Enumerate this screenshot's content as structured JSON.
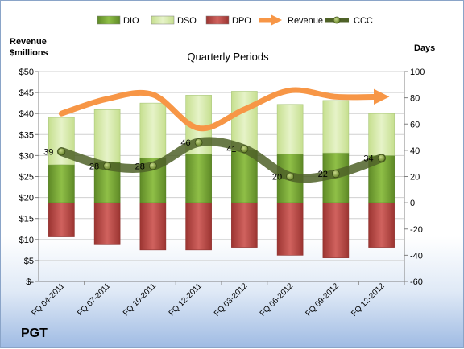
{
  "chart_data": {
    "type": "bar",
    "title": "Quarterly Periods",
    "company": "PGT",
    "ylabel_left": [
      "Revenue",
      "$millions"
    ],
    "ylabel_right": "Days",
    "categories": [
      "FQ 04-2011",
      "FQ 07-2011",
      "FQ 10-2011",
      "FQ 12-2011",
      "FQ 03-2012",
      "FQ 06-2012",
      "FQ 09-2012",
      "FQ 12-2012"
    ],
    "left_ticks": [
      "$-",
      "$5",
      "$10",
      "$15",
      "$20",
      "$25",
      "$30",
      "$35",
      "$40",
      "$45",
      "$50"
    ],
    "right_ticks": [
      "-60",
      "-40",
      "-20",
      "0",
      "20",
      "40",
      "60",
      "80",
      "100"
    ],
    "ylim_left": [
      0,
      50
    ],
    "ylim_right": [
      -60,
      100
    ],
    "legend_position": "top",
    "series": [
      {
        "name": "DIO",
        "axis": "right",
        "color": "#77a033",
        "values": [
          29,
          31,
          34,
          37,
          40,
          37,
          38,
          36
        ]
      },
      {
        "name": "DSO",
        "axis": "right",
        "color": "#d3e8a4",
        "values": [
          36,
          40,
          42,
          45,
          45,
          38,
          40,
          32
        ]
      },
      {
        "name": "DPO",
        "axis": "right",
        "color": "#c0504d",
        "values": [
          -26,
          -32,
          -36,
          -36,
          -34,
          -40,
          -42,
          -34
        ]
      },
      {
        "name": "Revenue",
        "axis": "left",
        "color": "#f79646",
        "values": [
          40,
          43.5,
          44.5,
          36.5,
          41,
          45.5,
          44,
          44
        ]
      },
      {
        "name": "CCC",
        "axis": "right",
        "color": "#4f6228",
        "values": [
          39,
          28,
          28,
          46,
          41,
          20,
          22,
          34
        ]
      }
    ],
    "ccc_labels": [
      "39",
      "28",
      "28",
      "46",
      "41",
      "20",
      "22",
      "34"
    ]
  }
}
